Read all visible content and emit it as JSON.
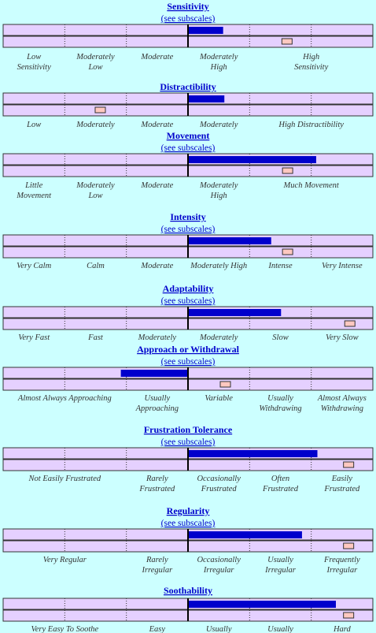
{
  "sections": [
    {
      "title": "Sensitivity",
      "link": "(see subscales)",
      "bar": 0.57,
      "marker": 1.6,
      "labels": [
        [
          "Low",
          "Sensitivity"
        ],
        [
          "Moderately",
          "Low"
        ],
        [
          "Moderate"
        ],
        [
          "Moderately",
          "High"
        ],
        [
          "High",
          "Sensitivity"
        ],
        null
      ]
    },
    {
      "title": "Distractibility",
      "bar": 0.59,
      "marker": -1.43,
      "labels": [
        [
          "Low"
        ],
        [
          "Moderately"
        ],
        [
          "Moderate"
        ],
        [
          "Moderately"
        ],
        [
          "High Distractibility"
        ],
        null
      ]
    },
    {
      "title": "Movement",
      "link": "(see subscales)",
      "bar": 2.08,
      "marker": 1.61,
      "labels": [
        [
          "Little",
          "Movement"
        ],
        [
          "Moderately",
          "Low"
        ],
        [
          "Moderate"
        ],
        [
          "Moderately",
          "High"
        ],
        [
          "Much Movement"
        ],
        null
      ]
    },
    {
      "title": "Intensity",
      "link": "(see subscales)",
      "bar": 1.35,
      "marker": 1.61,
      "labels": [
        [
          "Very Calm"
        ],
        [
          "Calm"
        ],
        [
          "Moderate"
        ],
        [
          "Moderately High"
        ],
        [
          "Intense"
        ],
        [
          "Very Intense"
        ]
      ]
    },
    {
      "title": "Adaptability",
      "link": "(see subscales)",
      "bar": 1.51,
      "marker": 2.62,
      "labels": [
        [
          "Very Fast"
        ],
        [
          "Fast"
        ],
        [
          "Moderately"
        ],
        [
          "Moderately"
        ],
        [
          "Slow"
        ],
        [
          "Very Slow"
        ]
      ]
    },
    {
      "title": "Approach or Withdrawal",
      "link": "(see subscales)",
      "bar": -1.09,
      "marker": 0.6,
      "labels": [
        [
          "Almost Always Approaching"
        ],
        null,
        [
          "Usually",
          "Approaching"
        ],
        [
          "Variable"
        ],
        [
          "Usually",
          "Withdrawing"
        ],
        [
          "Almost Always",
          "Withdrawing"
        ]
      ]
    },
    {
      "title": "Frustration Tolerance",
      "link": "(see subscales)",
      "bar": 2.1,
      "marker": 2.6,
      "labels": [
        [
          "Not Easily Frustrated"
        ],
        null,
        [
          "Rarely",
          "Frustrated"
        ],
        [
          "Occasionally",
          "Frustrated"
        ],
        [
          "Often",
          "Frustrated"
        ],
        [
          "Easily",
          "Frustrated"
        ]
      ]
    },
    {
      "title": "Regularity",
      "link": "(see subscales)",
      "bar": 1.85,
      "marker": 2.6,
      "labels": [
        [
          "Very Regular"
        ],
        null,
        [
          "Rarely",
          "Irregular"
        ],
        [
          "Occasionally",
          "Irregular"
        ],
        [
          "Usually",
          "Irregular"
        ],
        [
          "Frequently",
          "Irregular"
        ]
      ]
    },
    {
      "title": "Soothability",
      "bar": 2.4,
      "marker": 2.6,
      "labels": [
        [
          "Very Easy To Soothe"
        ],
        null,
        [
          "Easy"
        ],
        [
          "Usually"
        ],
        [
          "Usually"
        ],
        [
          "Hard"
        ]
      ]
    }
  ]
}
